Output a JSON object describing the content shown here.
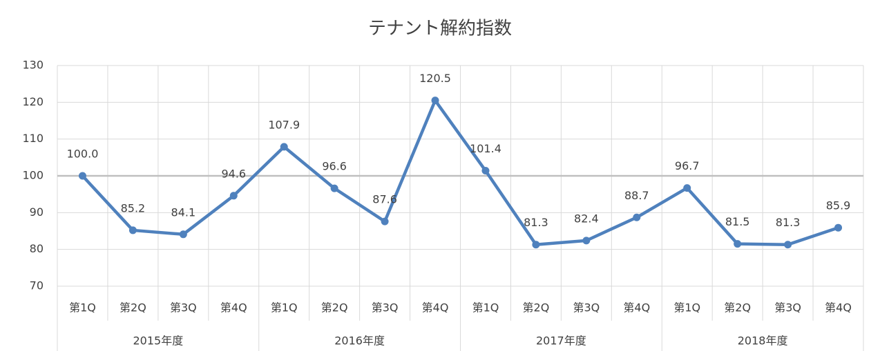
{
  "chart_data": {
    "type": "line",
    "title": "テナント解約指数",
    "categories": [
      "第1Q",
      "第2Q",
      "第3Q",
      "第4Q",
      "第1Q",
      "第2Q",
      "第3Q",
      "第4Q",
      "第1Q",
      "第2Q",
      "第3Q",
      "第4Q",
      "第1Q",
      "第2Q",
      "第3Q",
      "第4Q"
    ],
    "groups": [
      "2015年度",
      "2016年度",
      "2017年度",
      "2018年度"
    ],
    "series": [
      {
        "name": "テナント解約指数",
        "color": "#4f81bd",
        "values": [
          100,
          85.2,
          84.1,
          94.6,
          107.9,
          96.6,
          87.6,
          120.5,
          101.4,
          81.3,
          82.4,
          88.7,
          96.7,
          81.5,
          81.3,
          85.9
        ],
        "value_labels": [
          "100.0",
          "85.2",
          "84.1",
          "94.6",
          "107.9",
          "96.6",
          "87.6",
          "120.5",
          "101.4",
          "81.3",
          "82.4",
          "88.7",
          "96.7",
          "81.5",
          "81.3",
          "85.9"
        ]
      }
    ],
    "ylim": [
      70,
      130
    ],
    "yticks": [
      70,
      80,
      90,
      100,
      110,
      120,
      130
    ],
    "grid": true,
    "reference_line": 100
  }
}
